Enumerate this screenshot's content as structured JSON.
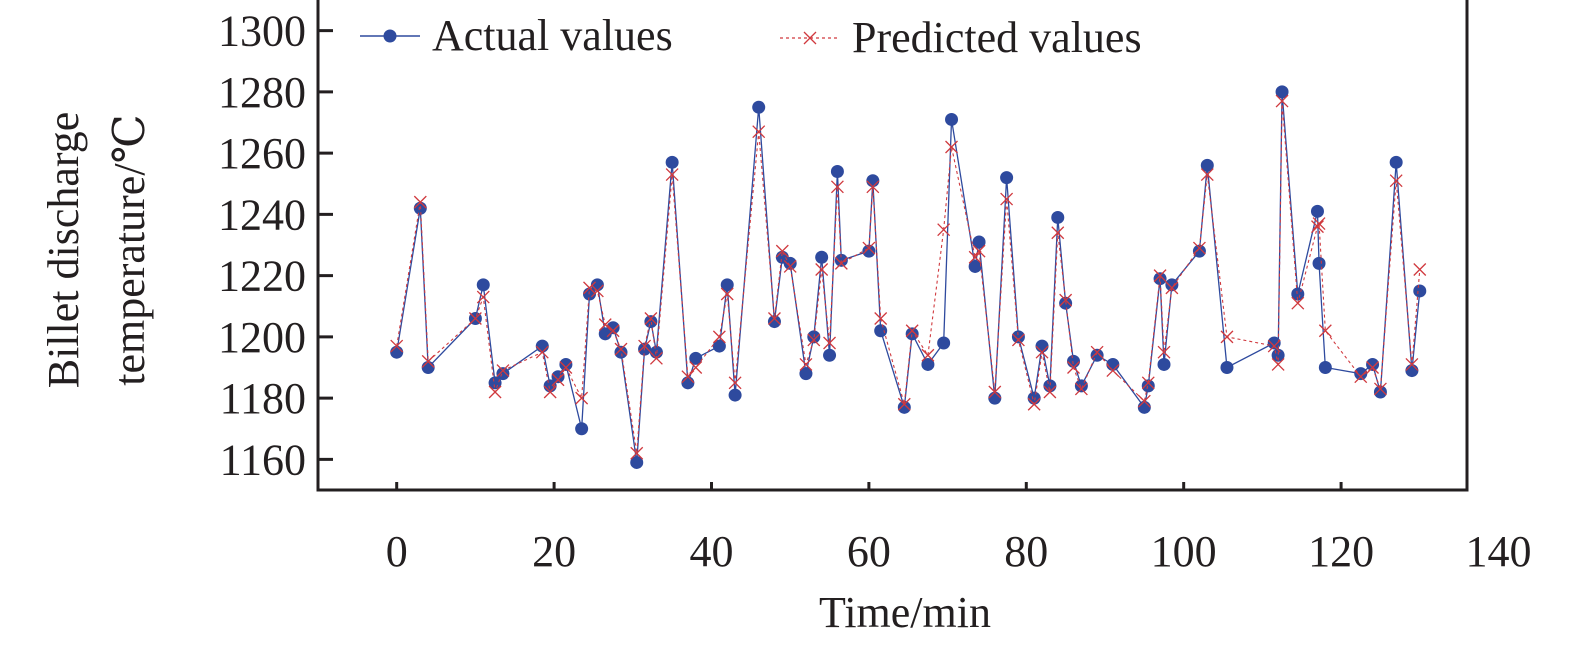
{
  "chart_data": {
    "type": "line",
    "title": "",
    "xlabel": "Time/min",
    "ylabel_lines": [
      "Billet discharge",
      "temperature/℃"
    ],
    "xlim": [
      -10,
      136
    ],
    "ylim": [
      1150,
      1310
    ],
    "xticks": [
      0,
      20,
      40,
      60,
      80,
      100,
      120,
      140
    ],
    "yticks": [
      1160,
      1180,
      1200,
      1220,
      1240,
      1260,
      1280,
      1300
    ],
    "grid": false,
    "legend_position": "top",
    "x": [
      0,
      3,
      4,
      10,
      11,
      12.5,
      13.5,
      18.5,
      19.5,
      20.5,
      21.5,
      23.5,
      24.5,
      25.5,
      26.5,
      27.5,
      28.5,
      30.5,
      31.5,
      32.3,
      33,
      35,
      37,
      38,
      41,
      42,
      43,
      46,
      48,
      49,
      50,
      52,
      53,
      54,
      55,
      56,
      56.5,
      60,
      60.5,
      61.5,
      64.5,
      65.5,
      67.5,
      69.5,
      70.5,
      73.5,
      74,
      76,
      77.5,
      79,
      81,
      82,
      83,
      84,
      85,
      86,
      87,
      89,
      91,
      95,
      95.5,
      97,
      97.5,
      98.5,
      102,
      103,
      105.5,
      111.5,
      112,
      112.5,
      114.5,
      117,
      117.2,
      118,
      122.5,
      124,
      125,
      127,
      129,
      130
    ],
    "series": [
      {
        "name": "Actual values",
        "color": "#2e4a9e",
        "marker": "circle",
        "line": "solid",
        "values": [
          1195,
          1242,
          1190,
          1206,
          1217,
          1185,
          1188,
          1197,
          1184,
          1187,
          1191,
          1170,
          1214,
          1217,
          1201,
          1203,
          1195,
          1159,
          1196,
          1205,
          1195,
          1257,
          1185,
          1193,
          1197,
          1217,
          1181,
          1275,
          1205,
          1226,
          1224,
          1188,
          1200,
          1226,
          1194,
          1254,
          1225,
          1228,
          1251,
          1202,
          1177,
          1201,
          1191,
          1198,
          1271,
          1223,
          1231,
          1180,
          1252,
          1200,
          1180,
          1197,
          1184,
          1239,
          1211,
          1192,
          1184,
          1194,
          1191,
          1177,
          1184,
          1219,
          1191,
          1217,
          1228,
          1256,
          1190,
          1198,
          1194,
          1280,
          1214,
          1241,
          1224,
          1190,
          1188,
          1191,
          1182,
          1257,
          1189,
          1215
        ]
      },
      {
        "name": "Predicted values",
        "color": "#d0393e",
        "marker": "x",
        "line": "dashed",
        "values": [
          1197,
          1244,
          1192,
          1206,
          1213,
          1182,
          1189,
          1195,
          1182,
          1186,
          1190,
          1180,
          1216,
          1215,
          1204,
          1202,
          1196,
          1162,
          1197,
          1206,
          1193,
          1253,
          1187,
          1190,
          1200,
          1214,
          1185,
          1267,
          1206,
          1228,
          1223,
          1191,
          1199,
          1222,
          1198,
          1249,
          1224,
          1229,
          1249,
          1206,
          1178,
          1202,
          1194,
          1235,
          1262,
          1226,
          1228,
          1182,
          1245,
          1199,
          1178,
          1195,
          1182,
          1234,
          1212,
          1190,
          1183,
          1195,
          1189,
          1179,
          1185,
          1220,
          1195,
          1216,
          1229,
          1253,
          1200,
          1197,
          1191,
          1277,
          1211,
          1236,
          1237,
          1202,
          1187,
          1190,
          1183,
          1251,
          1191,
          1222
        ]
      }
    ]
  }
}
